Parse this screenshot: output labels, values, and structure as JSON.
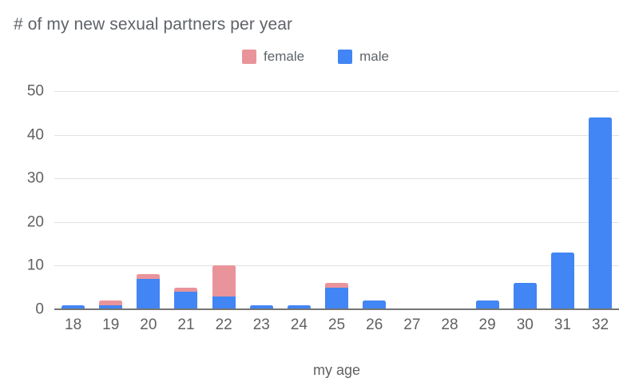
{
  "title": "# of my new sexual partners per year",
  "legend": {
    "items": [
      {
        "label": "female",
        "color": "#e9949b"
      },
      {
        "label": "male",
        "color": "#4285f4"
      }
    ]
  },
  "chart_data": {
    "type": "bar",
    "stacked": true,
    "title": "# of my new sexual partners per year",
    "categories": [
      "18",
      "19",
      "20",
      "21",
      "22",
      "23",
      "24",
      "25",
      "26",
      "27",
      "28",
      "29",
      "30",
      "31",
      "32"
    ],
    "series": [
      {
        "name": "female",
        "color": "#e9949b",
        "values": [
          0,
          1,
          1,
          1,
          7,
          0,
          0,
          1,
          0,
          0,
          0,
          0,
          0,
          0,
          0
        ]
      },
      {
        "name": "male",
        "color": "#4285f4",
        "values": [
          1,
          1,
          7,
          4,
          3,
          1,
          1,
          5,
          2,
          0,
          0,
          2,
          6,
          13,
          44
        ]
      }
    ],
    "xlabel": "my age",
    "ylabel": "",
    "ylim": [
      0,
      50
    ],
    "yticks": [
      0,
      10,
      20,
      30,
      40,
      50
    ],
    "grid": true,
    "legend_position": "top-center",
    "colors": {
      "female": "#e9949b",
      "male": "#4285f4"
    },
    "gridline_color": "#e2e2e2",
    "axis_line_color": "#757575",
    "text_color": "#616161",
    "title_color": "#5f6368"
  }
}
